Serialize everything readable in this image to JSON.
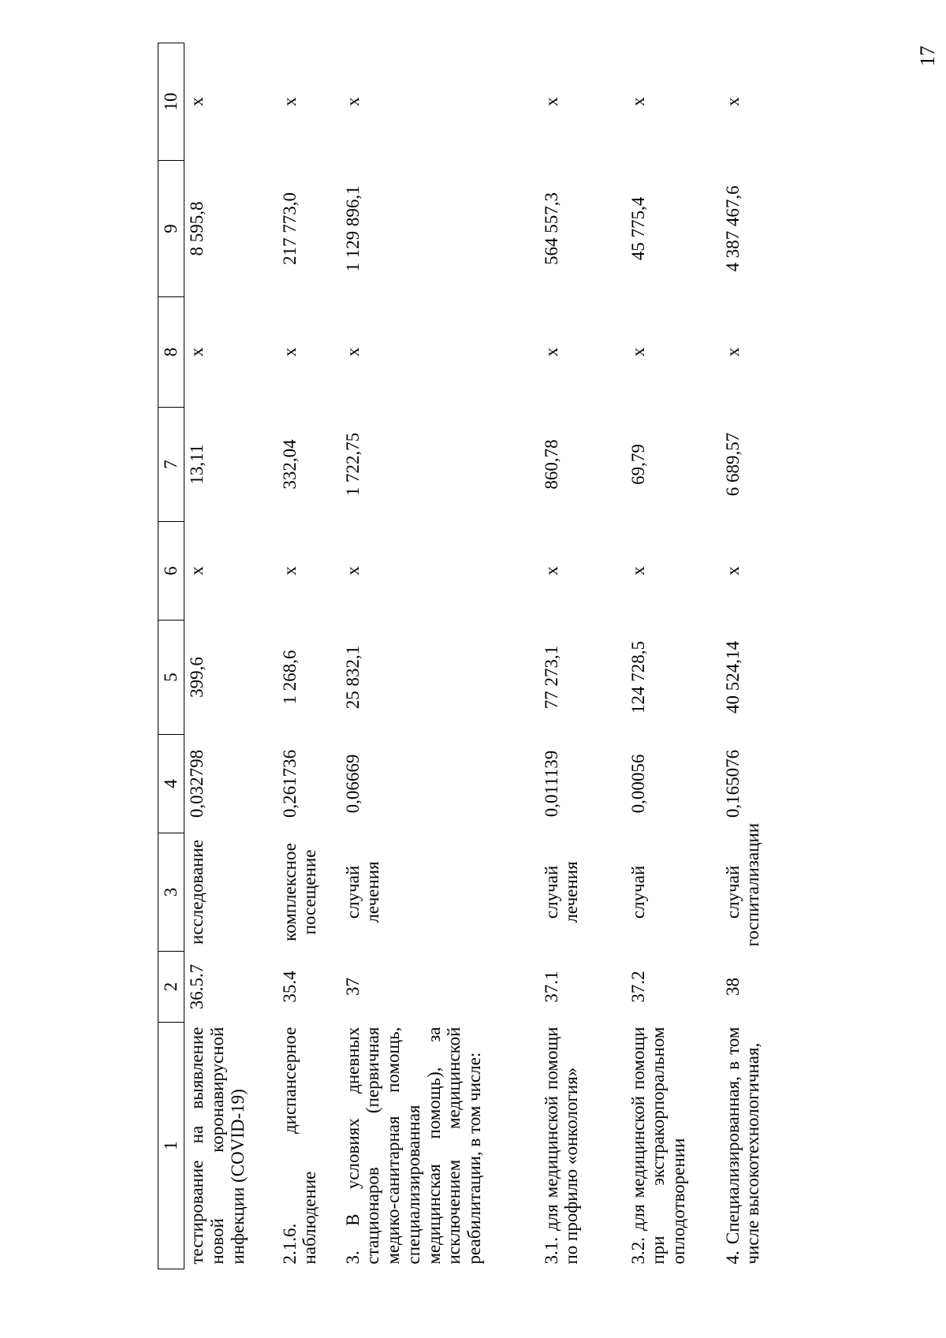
{
  "page_number": "17",
  "columns": [
    "1",
    "2",
    "3",
    "4",
    "5",
    "6",
    "7",
    "8",
    "9",
    "10"
  ],
  "rows": [
    {
      "name": "тестирование на выявление новой коронавирусной инфекции (COVID-19)",
      "code": "36.5.7",
      "unit": "исследование",
      "c4": "0,032798",
      "c5": "399,6",
      "c6": "x",
      "c7": "13,11",
      "c8": "x",
      "c9": "8 595,8",
      "c10": "x"
    },
    {
      "name": "2.1.6. диспансерное наблюдение",
      "code": "35.4",
      "unit": "комплексное посещение",
      "c4": "0,261736",
      "c5": "1 268,6",
      "c6": "x",
      "c7": "332,04",
      "c8": "x",
      "c9": "217 773,0",
      "c10": "x"
    },
    {
      "name": "3. В условиях дневных стационаров (первичная медико-санитарная помощь, специализированная медицинская помощь), за исключением медицинской реабилитации, в том числе:",
      "code": "37",
      "unit": "случай лечения",
      "c4": "0,06669",
      "c5": "25 832,1",
      "c6": "x",
      "c7": "1 722,75",
      "c8": "x",
      "c9": "1 129 896,1",
      "c10": "x"
    },
    {
      "name": "3.1. для медицинской помощи по профилю «онкология»",
      "code": "37.1",
      "unit": "случай лечения",
      "c4": "0,011139",
      "c5": "77 273,1",
      "c6": "x",
      "c7": "860,78",
      "c8": "x",
      "c9": "564 557,3",
      "c10": "x"
    },
    {
      "name": "3.2. для медицинской помощи при экстракорпоральном оплодотворении",
      "code": "37.2",
      "unit": "случай",
      "c4": "0,00056",
      "c5": "124 728,5",
      "c6": "x",
      "c7": "69,79",
      "c8": "x",
      "c9": "45 775,4",
      "c10": "x"
    },
    {
      "name": "4. Специализированная, в том числе высокотехнологичная,",
      "code": "38",
      "unit": "случай госпитализации",
      "c4": "0,165076",
      "c5": "40 524,14",
      "c6": "x",
      "c7": "6 689,57",
      "c8": "x",
      "c9": "4 387 467,6",
      "c10": "x"
    }
  ]
}
